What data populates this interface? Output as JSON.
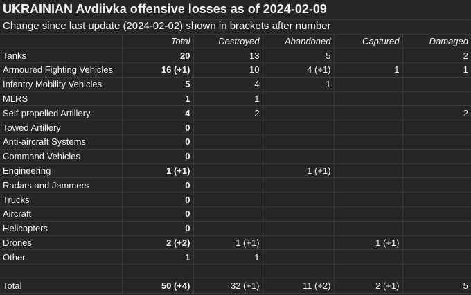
{
  "title": "UKRAINIAN Avdiivka offensive losses as of 2024-02-09",
  "subtitle": "Change since last update (2024-02-02) shown in brackets after number",
  "columns": [
    "",
    "Total",
    "Destroyed",
    "Abandoned",
    "Captured",
    "Damaged"
  ],
  "rows": [
    {
      "label": "Tanks",
      "total": "20",
      "destroyed": "13",
      "abandoned": "5",
      "captured": "",
      "damaged": "2"
    },
    {
      "label": "Armoured Fighting Vehicles",
      "total": "16 (+1)",
      "destroyed": "10",
      "abandoned": "4 (+1)",
      "captured": "1",
      "damaged": "1"
    },
    {
      "label": "Infantry Mobility Vehicles",
      "total": "5",
      "destroyed": "4",
      "abandoned": "1",
      "captured": "",
      "damaged": ""
    },
    {
      "label": "MLRS",
      "total": "1",
      "destroyed": "1",
      "abandoned": "",
      "captured": "",
      "damaged": ""
    },
    {
      "label": "Self-propelled Artillery",
      "total": "4",
      "destroyed": "2",
      "abandoned": "",
      "captured": "",
      "damaged": "2"
    },
    {
      "label": "Towed Artillery",
      "total": "0",
      "destroyed": "",
      "abandoned": "",
      "captured": "",
      "damaged": ""
    },
    {
      "label": "Anti-aircraft Systems",
      "total": "0",
      "destroyed": "",
      "abandoned": "",
      "captured": "",
      "damaged": ""
    },
    {
      "label": "Command Vehicles",
      "total": "0",
      "destroyed": "",
      "abandoned": "",
      "captured": "",
      "damaged": ""
    },
    {
      "label": "Engineering",
      "total": "1 (+1)",
      "destroyed": "",
      "abandoned": "1 (+1)",
      "captured": "",
      "damaged": ""
    },
    {
      "label": "Radars and Jammers",
      "total": "0",
      "destroyed": "",
      "abandoned": "",
      "captured": "",
      "damaged": ""
    },
    {
      "label": "Trucks",
      "total": "0",
      "destroyed": "",
      "abandoned": "",
      "captured": "",
      "damaged": ""
    },
    {
      "label": "Aircraft",
      "total": "0",
      "destroyed": "",
      "abandoned": "",
      "captured": "",
      "damaged": ""
    },
    {
      "label": "Helicopters",
      "total": "0",
      "destroyed": "",
      "abandoned": "",
      "captured": "",
      "damaged": ""
    },
    {
      "label": "Drones",
      "total": "2 (+2)",
      "destroyed": "1 (+1)",
      "abandoned": "",
      "captured": "1 (+1)",
      "damaged": ""
    },
    {
      "label": "Other",
      "total": "1",
      "destroyed": "1",
      "abandoned": "",
      "captured": "",
      "damaged": ""
    }
  ],
  "totals": {
    "label": "Total",
    "total": "50 (+4)",
    "destroyed": "32 (+1)",
    "abandoned": "11 (+2)",
    "captured": "2 (+1)",
    "damaged": "5"
  }
}
